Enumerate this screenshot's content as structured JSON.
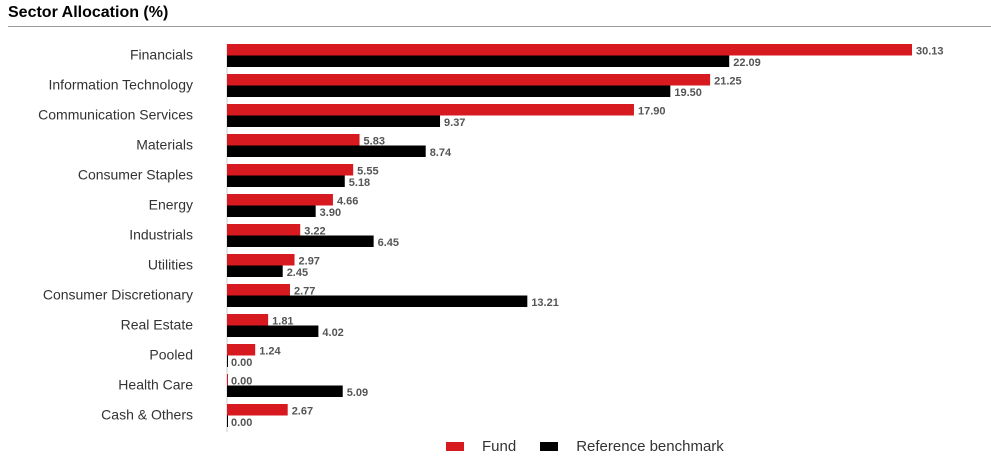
{
  "header": {
    "title": "Sector Allocation (%)"
  },
  "colors": {
    "fund": "#d71920",
    "benchmark": "#000000"
  },
  "chart_data": {
    "type": "bar",
    "orientation": "horizontal",
    "title": "Sector Allocation (%)",
    "categories": [
      "Financials",
      "Information Technology",
      "Communication Services",
      "Materials",
      "Consumer Staples",
      "Energy",
      "Industrials",
      "Utilities",
      "Consumer Discretionary",
      "Real Estate",
      "Pooled",
      "Health Care",
      "Cash & Others"
    ],
    "series": [
      {
        "name": "Fund",
        "values": [
          30.13,
          21.25,
          17.9,
          5.83,
          5.55,
          4.66,
          3.22,
          2.97,
          2.77,
          1.81,
          1.24,
          0.0,
          2.67
        ],
        "labels": [
          "30.13",
          "21.25",
          "17.90",
          "5.83",
          "5.55",
          "4.66",
          "3.22",
          "2.97",
          "2.77",
          "1.81",
          "1.24",
          "0.00",
          "2.67"
        ]
      },
      {
        "name": "Reference benchmark",
        "values": [
          22.09,
          19.5,
          9.37,
          8.74,
          5.18,
          3.9,
          6.45,
          2.45,
          13.21,
          4.02,
          0.0,
          5.09,
          0.0
        ],
        "labels": [
          "22.09",
          "19.50",
          "9.37",
          "8.74",
          "5.18",
          "3.90",
          "6.45",
          "2.45",
          "13.21",
          "4.02",
          "0.00",
          "5.09",
          "0.00"
        ]
      }
    ],
    "grid": false,
    "legend_position": "bottom"
  }
}
